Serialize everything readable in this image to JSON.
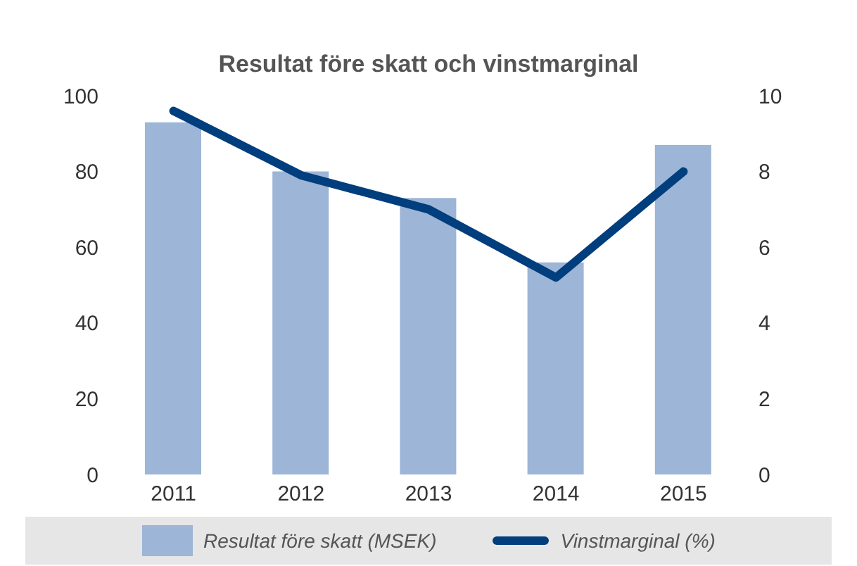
{
  "chart_data": {
    "type": "bar",
    "title": "Resultat före skatt och vinstmarginal",
    "categories": [
      "2011",
      "2012",
      "2013",
      "2014",
      "2015"
    ],
    "series": [
      {
        "name": "Resultat före skatt (MSEK)",
        "color": "#9db5d6",
        "values": [
          93,
          80,
          73,
          56,
          87
        ]
      },
      {
        "name": "Vinstmarginal (%)",
        "type": "line",
        "axis": "y2",
        "color": "#003e7e",
        "values": [
          9.6,
          7.9,
          7.0,
          5.2,
          8.0
        ]
      }
    ],
    "ylim": [
      0,
      100
    ],
    "yticks": [
      0,
      20,
      40,
      60,
      80,
      100
    ],
    "y2lim": [
      0,
      10
    ],
    "y2ticks": [
      0,
      2,
      4,
      6,
      8,
      10
    ],
    "legend": "bottom",
    "marker": "none"
  }
}
